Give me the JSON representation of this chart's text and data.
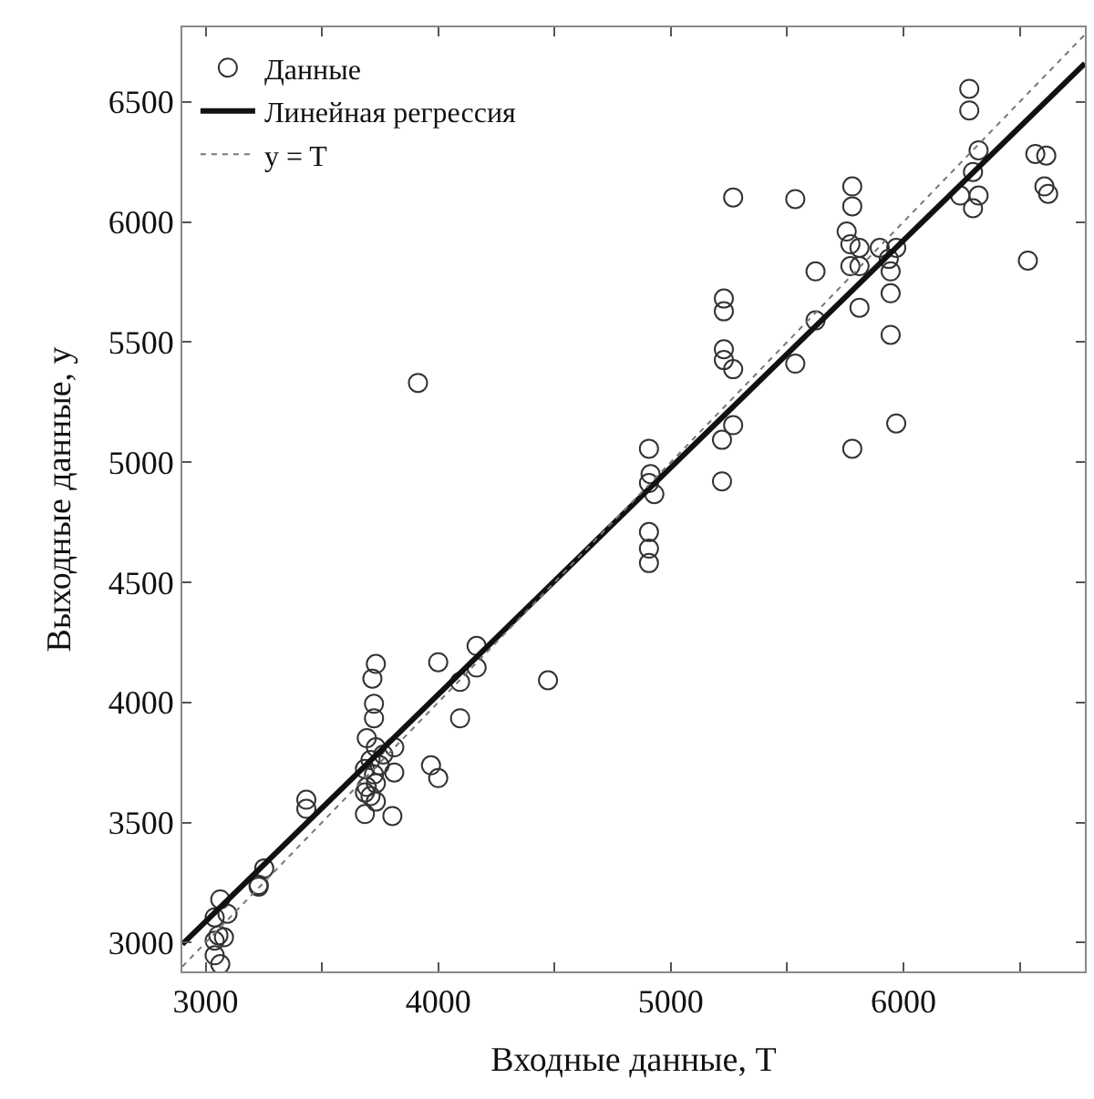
{
  "chart_data": {
    "type": "scatter",
    "xlabel": "Входные данные, T",
    "ylabel": "Выходные данные, y",
    "xlim": [
      2900,
      6780
    ],
    "ylim": [
      2880,
      6810
    ],
    "xticks": [
      3000,
      {
        "value": 3500,
        "label": null
      },
      4000,
      {
        "value": 4500,
        "label": null
      },
      5000,
      {
        "value": 5500,
        "label": null
      },
      6000,
      {
        "value": 6500,
        "label": null
      }
    ],
    "yticks": [
      3000,
      3500,
      4000,
      4500,
      5000,
      5500,
      6000,
      6500
    ],
    "legend": "top left",
    "series": [
      {
        "name": "Данные",
        "marker": "circle",
        "color": "#333333",
        "x": [
          3732,
          3717,
          3724,
          3724,
          3693,
          3732,
          3709,
          3748,
          3685,
          3724,
          3732,
          3693,
          3709,
          3685,
          3732,
          3764,
          3811,
          3811,
          3685,
          3803,
          4000,
          4165,
          4165,
          4094,
          4094,
          3969,
          4000,
          4472,
          3433,
          3433,
          3252,
          3228,
          3228,
          3063,
          3039,
          3094,
          3055,
          3079,
          3039,
          3039,
          3063,
          6283,
          6283,
          6323,
          6299,
          6244,
          6323,
          6299,
          6567,
          6614,
          6606,
          6622,
          6535,
          5268,
          5535,
          5780,
          5780,
          5756,
          5772,
          5811,
          5772,
          5811,
          5898,
          5969,
          5937,
          5622,
          5945,
          5945,
          5811,
          5622,
          5945,
          5228,
          5228,
          5228,
          5228,
          5268,
          5535,
          5268,
          5220,
          5220,
          5780,
          5969,
          4906,
          4913,
          4906,
          4929,
          4906,
          4906,
          4906,
          3913
        ],
        "values": [
          4160,
          4099,
          3994,
          3934,
          3851,
          3813,
          3760,
          3738,
          3723,
          3700,
          3663,
          3648,
          3610,
          3625,
          3587,
          3783,
          3813,
          3708,
          3535,
          3527,
          4167,
          4235,
          4145,
          4085,
          3934,
          3738,
          3685,
          4092,
          3595,
          3557,
          3309,
          3233,
          3240,
          3180,
          3105,
          3120,
          3030,
          3022,
          3008,
          2947,
          2910,
          6554,
          6464,
          6298,
          6208,
          6110,
          6110,
          6057,
          6283,
          6276,
          6148,
          6117,
          5839,
          6102,
          6095,
          6148,
          6065,
          5960,
          5907,
          5892,
          5816,
          5816,
          5892,
          5892,
          5846,
          5794,
          5794,
          5703,
          5643,
          5590,
          5530,
          5681,
          5628,
          5470,
          5425,
          5387,
          5410,
          5154,
          5093,
          4920,
          5056,
          5161,
          5056,
          4950,
          4913,
          4867,
          4709,
          4640,
          4580,
          5330
        ]
      },
      {
        "name": "Линейная регрессия",
        "type": "line",
        "color": "#111111",
        "line_style": "solid",
        "x": [
          2900,
          6780
        ],
        "values": [
          2993,
          6660
        ]
      },
      {
        "name": "y = T",
        "type": "line",
        "color": "#777777",
        "line_style": "dotted",
        "x": [
          2900,
          6780
        ],
        "values": [
          2900,
          6780
        ]
      }
    ]
  }
}
